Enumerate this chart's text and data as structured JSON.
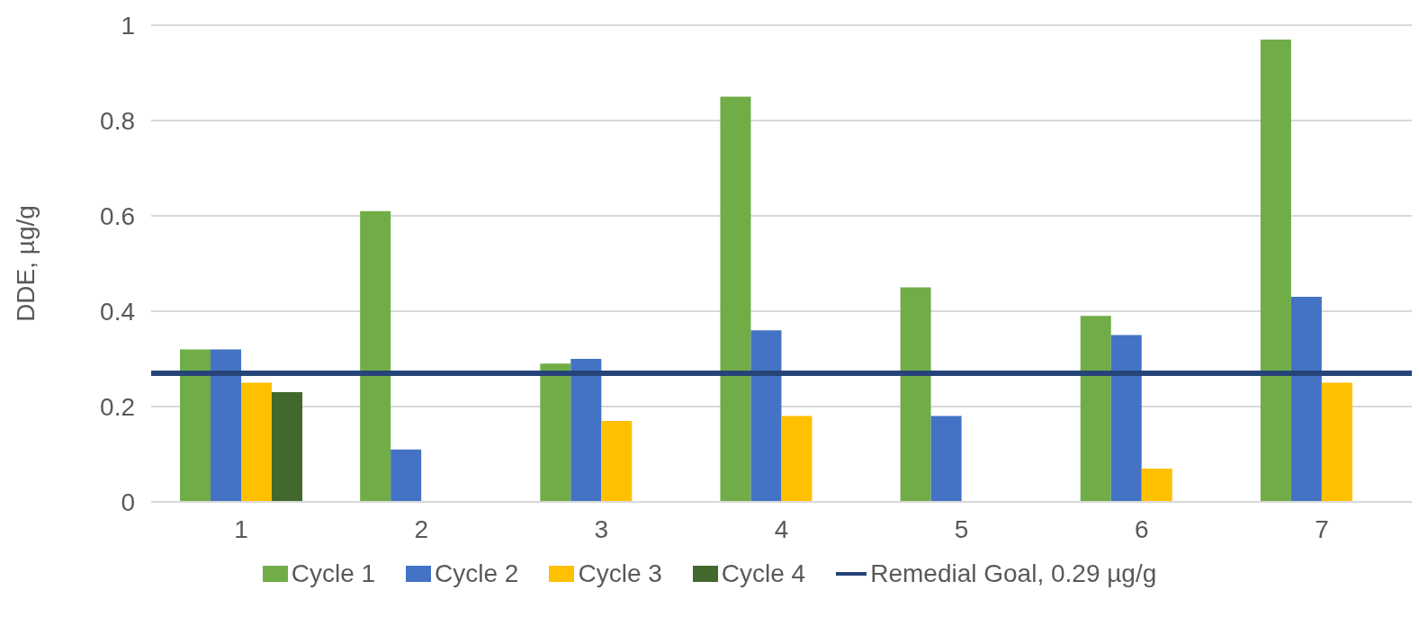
{
  "chart_data": {
    "type": "bar",
    "ylabel": "DDE, µg/g",
    "categories": [
      "1",
      "2",
      "3",
      "4",
      "5",
      "6",
      "7"
    ],
    "series": [
      {
        "name": "Cycle 1",
        "color": "#70ad47",
        "values": [
          0.32,
          0.61,
          0.29,
          0.85,
          0.45,
          0.39,
          0.97
        ]
      },
      {
        "name": "Cycle 2",
        "color": "#4472c4",
        "values": [
          0.32,
          0.11,
          0.3,
          0.36,
          0.18,
          0.35,
          0.43
        ]
      },
      {
        "name": "Cycle 3",
        "color": "#ffc000",
        "values": [
          0.25,
          null,
          0.17,
          0.18,
          null,
          0.07,
          0.25
        ]
      },
      {
        "name": "Cycle 4",
        "color": "#43682b",
        "values": [
          0.23,
          null,
          null,
          null,
          null,
          null,
          null
        ]
      }
    ],
    "ref_lines": [
      {
        "axis": "y",
        "value": 0.27,
        "label": "Remedial Goal, 0.29 µg/g",
        "color": "#264478"
      }
    ],
    "ylim": [
      0,
      1
    ],
    "yticks": [
      0,
      0.2,
      0.4,
      0.6,
      0.8,
      1
    ],
    "grid": "y",
    "legend": "bottom"
  }
}
